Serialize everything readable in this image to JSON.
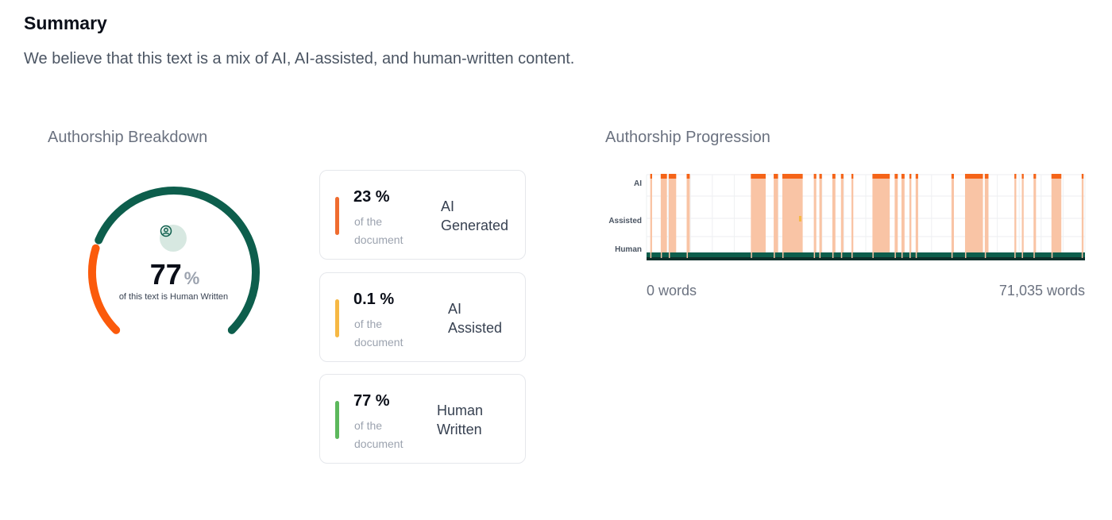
{
  "summary": {
    "title": "Summary",
    "description": "We believe that this text is a mix of AI, AI-assisted, and human-written content."
  },
  "breakdown": {
    "title": "Authorship Breakdown",
    "donut": {
      "value": "77",
      "unit": "%",
      "caption": "of this text is Human Written",
      "icon": "user-circle-icon",
      "human_fraction": 0.77,
      "ai_fraction": 0.23
    },
    "cards": [
      {
        "percent": "23 %",
        "sub_line1": "of the",
        "sub_line2": "document",
        "cat_line1": "AI",
        "cat_line2": "Generated",
        "color": "#ef6c2f"
      },
      {
        "percent": "0.1 %",
        "sub_line1": "of the",
        "sub_line2": "document",
        "cat_line1": "AI",
        "cat_line2": "Assisted",
        "color": "#f6b844"
      },
      {
        "percent": "77 %",
        "sub_line1": "of the",
        "sub_line2": "document",
        "cat_line1": "Human",
        "cat_line2": "Written",
        "color": "#5cb85c"
      }
    ]
  },
  "progression": {
    "title": "Authorship Progression",
    "x_start": "0 words",
    "x_end": "71,035 words",
    "chart_data": {
      "type": "area",
      "y_categories": [
        "Human",
        "Assisted",
        "AI"
      ],
      "y_labels": {
        "ai": "AI",
        "assisted": "Assisted",
        "human": "Human"
      },
      "x_range": [
        0,
        71035
      ],
      "ai_segments": [
        [
          600,
          900
        ],
        [
          2300,
          3300
        ],
        [
          3600,
          4800
        ],
        [
          6500,
          7000
        ],
        [
          16900,
          19300
        ],
        [
          20600,
          21300
        ],
        [
          22000,
          25300
        ],
        [
          27100,
          27500
        ],
        [
          28000,
          28400
        ],
        [
          30100,
          30600
        ],
        [
          31500,
          31900
        ],
        [
          33200,
          33500
        ],
        [
          36600,
          39400
        ],
        [
          40200,
          40700
        ],
        [
          41300,
          41800
        ],
        [
          42600,
          42900
        ],
        [
          43600,
          44000
        ],
        [
          49400,
          49800
        ],
        [
          51600,
          54500
        ],
        [
          54800,
          55400
        ],
        [
          59600,
          59900
        ],
        [
          60800,
          61100
        ],
        [
          62700,
          63100
        ],
        [
          65600,
          67200
        ],
        [
          70500,
          70800
        ]
      ],
      "assisted_segments": [
        [
          24700,
          24950
        ]
      ],
      "colors": {
        "ai": "#f56418",
        "ai_fill": "#f9c4a5",
        "assisted": "#f6b844",
        "human": "#0d5e4c"
      }
    }
  },
  "colors": {
    "human": "#0d5e4c",
    "ai": "#fb5a0b"
  }
}
